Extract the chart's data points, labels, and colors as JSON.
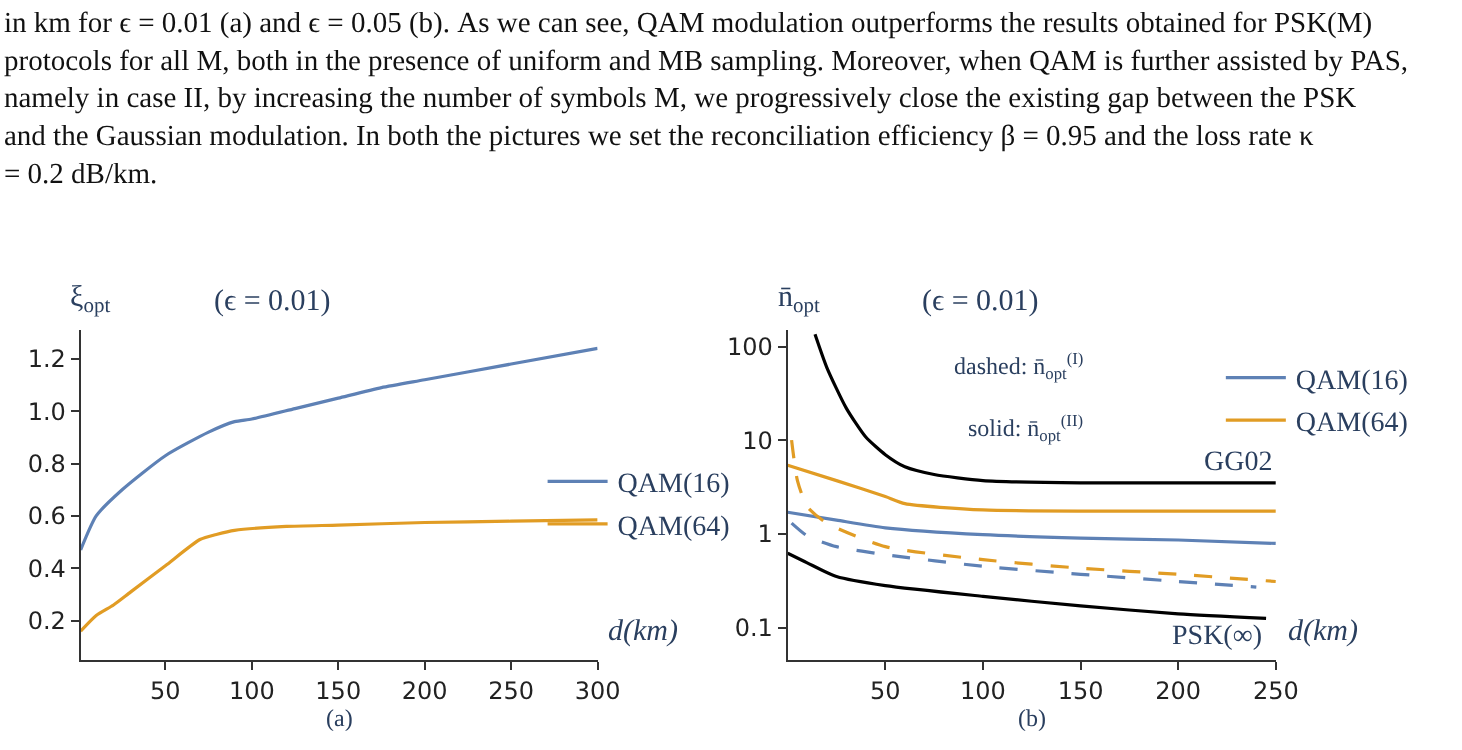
{
  "chart_data": [
    {
      "type": "line",
      "title": "(ϵ = 0.01)",
      "ylabel": "ξ$_{opt}$",
      "xlabel": "d(km)",
      "annotations": [
        "in km for ϵ = 0.01 (a) and ϵ = 0.05 (b). As we can see, QAM modulation outperforms the results obtained for PSK(M) protocols for all M, both in the presence of uniform and MB sampling. Moreover, when QAM is further assisted by PAS, namely in case II, by increasing the number of symbols M, we progressively close the existing gap between the PSK and the Gaussian modulation. In both the pictures we set the reconciliation efficiency β = 0.95 and the loss rate κ = 0.2 dB/km.",
        "(a)"
      ],
      "xlim": [
        1,
        300
      ],
      "xticks": [
        50,
        100,
        150,
        200,
        250,
        300
      ],
      "ylim": [
        0.05,
        1.31
      ],
      "yticks": [
        0.2,
        0.4,
        0.6,
        0.8,
        {
          "value": 1,
          "label": "1.0"
        },
        1.2
      ],
      "legend": "right",
      "line_style": "solid",
      "series": [
        {
          "name": "QAM(16)",
          "color": "#5e81b5",
          "x": [
            1,
            10,
            25,
            50,
            75,
            90,
            100,
            125,
            150,
            175,
            200,
            250,
            300
          ],
          "values": [
            0.47,
            0.6,
            0.7,
            0.83,
            0.92,
            0.96,
            0.97,
            1.01,
            1.05,
            1.09,
            1.12,
            1.18,
            1.24
          ]
        },
        {
          "name": "QAM(64)",
          "color": "#e19c24",
          "x": [
            1,
            10,
            20,
            30,
            50,
            70,
            80,
            90,
            120,
            150,
            200,
            250,
            300
          ],
          "values": [
            0.16,
            0.22,
            0.26,
            0.31,
            0.41,
            0.51,
            0.53,
            0.545,
            0.56,
            0.565,
            0.575,
            0.58,
            0.585
          ]
        }
      ]
    },
    {
      "type": "line",
      "title": "(ϵ = 0.01)",
      "ylabel": "n̄$_{opt}$",
      "xlabel": "d(km)",
      "log": "y",
      "annotations": [
        "dashed: n̄$_{opt}$$^{(I)}$",
        "solid: n̄$_{opt}$$^{(II)}$",
        {
          "text": "GG02",
          "x": 250,
          "y": 3.5
        },
        {
          "text": "PSK(∞)",
          "x": 245,
          "y": 0.125
        },
        "(b)"
      ],
      "xlim": [
        0,
        250
      ],
      "xticks": [
        50,
        100,
        150,
        200,
        250
      ],
      "ylim": [
        0.045,
        150
      ],
      "yticks": [
        0.1,
        1,
        10,
        100
      ],
      "legend": "top right",
      "line_style": "solid",
      "series": [
        {
          "color": "#000000",
          "x": [
            14,
            20,
            30,
            40,
            50,
            60,
            75,
            100,
            150,
            250
          ],
          "values": [
            135,
            60,
            22,
            10.8,
            7,
            5.2,
            4.3,
            3.7,
            3.5,
            3.5
          ]
        },
        {
          "name": "QAM(16)",
          "color": "#5e81b5",
          "x": [
            0,
            25,
            50,
            100,
            150,
            200,
            250
          ],
          "values": [
            1.7,
            1.4,
            1.16,
            0.98,
            0.9,
            0.86,
            0.79
          ]
        },
        {
          "name": "QAM(64)",
          "color": "#e19c24",
          "x": [
            0,
            25,
            50,
            60,
            100,
            250
          ],
          "values": [
            5.4,
            3.7,
            2.5,
            2.1,
            1.8,
            1.75
          ]
        },
        {
          "color": "#e19c24",
          "line_style": "dashed",
          "x": [
            2,
            5,
            10,
            20,
            50,
            100,
            150,
            200,
            250
          ],
          "values": [
            10,
            3.7,
            1.95,
            1.3,
            0.73,
            0.53,
            0.43,
            0.37,
            0.31
          ]
        },
        {
          "color": "#5e81b5",
          "line_style": "dashed",
          "x": [
            2,
            10,
            25,
            50,
            100,
            150,
            200,
            240
          ],
          "values": [
            1.3,
            0.95,
            0.73,
            0.6,
            0.45,
            0.37,
            0.31,
            0.27
          ]
        },
        {
          "color": "#000000",
          "x": [
            0,
            10,
            25,
            50,
            100,
            150,
            200,
            245
          ],
          "values": [
            0.62,
            0.49,
            0.35,
            0.28,
            0.215,
            0.17,
            0.14,
            0.125
          ]
        }
      ]
    }
  ]
}
